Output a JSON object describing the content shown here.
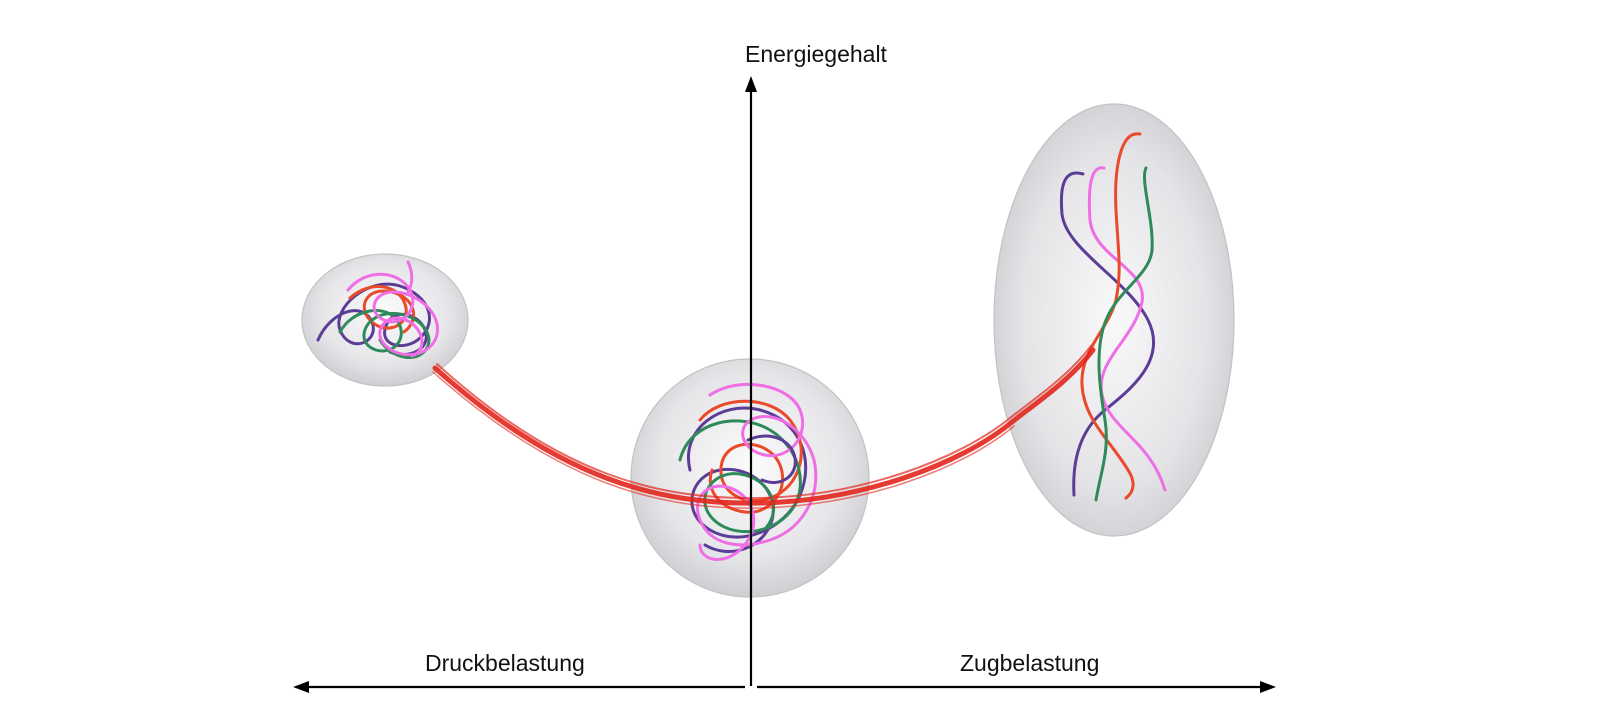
{
  "labels": {
    "y_axis": "Energiegehalt",
    "left_axis": "Druckbelastung",
    "right_axis": "Zugbelastung"
  },
  "colors": {
    "axis": "#000000",
    "energy_curve": "#e2261c",
    "strand_purple": "#5b3c96",
    "strand_red": "#ea4a2a",
    "strand_green": "#2f8a5a",
    "strand_pink": "#ef6ee6",
    "container_fill": "#e3e3e6",
    "container_stroke": "#bdbdbd"
  },
  "states": [
    {
      "name": "compressed",
      "shape": "small-sphere"
    },
    {
      "name": "relaxed",
      "shape": "sphere"
    },
    {
      "name": "stretched",
      "shape": "ellipsoid"
    }
  ]
}
